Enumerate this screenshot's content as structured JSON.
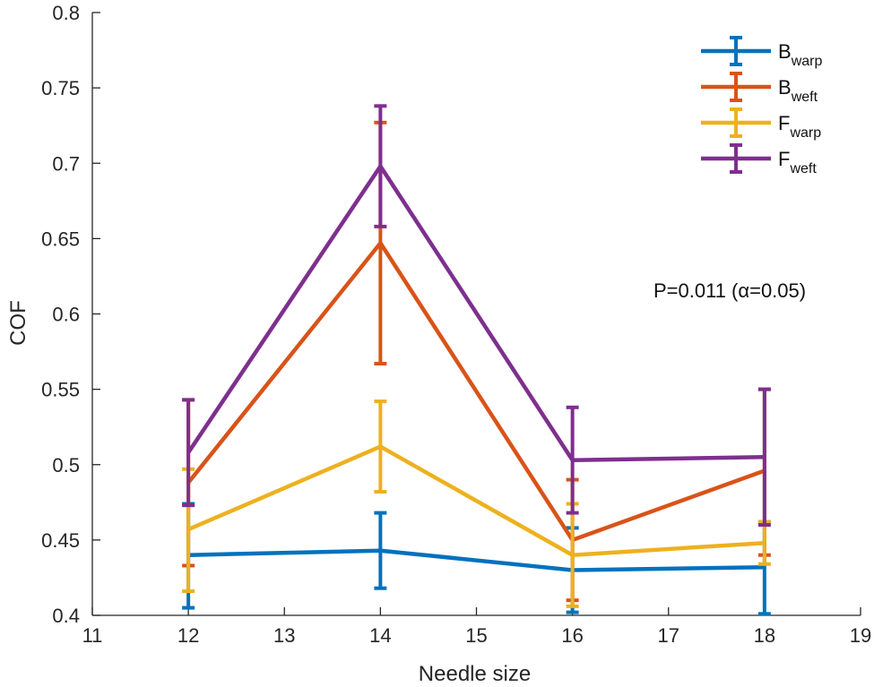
{
  "chart_data": {
    "type": "line",
    "title": "",
    "xlabel": "Needle size",
    "ylabel": "COF",
    "xlim": [
      11,
      19
    ],
    "ylim": [
      0.4,
      0.8
    ],
    "x_ticks": [
      "11",
      "12",
      "13",
      "14",
      "15",
      "16",
      "17",
      "18",
      "19"
    ],
    "y_ticks": [
      "0.4",
      "0.45",
      "0.5",
      "0.55",
      "0.6",
      "0.65",
      "0.7",
      "0.75",
      "0.8"
    ],
    "x": [
      12,
      14,
      16,
      18
    ],
    "grid": false,
    "legend_position": "top-right",
    "series": [
      {
        "name": "B_warp",
        "label_main": "B",
        "label_sub": "warp",
        "color": "#0072BD",
        "values": [
          0.44,
          0.443,
          0.43,
          0.432
        ],
        "err_low": [
          0.405,
          0.418,
          0.402,
          0.401
        ],
        "err_high": [
          0.474,
          0.468,
          0.458,
          0.462
        ]
      },
      {
        "name": "B_weft",
        "label_main": "B",
        "label_sub": "weft",
        "color": "#D95319",
        "values": [
          0.488,
          0.647,
          0.45,
          0.496
        ],
        "err_low": [
          0.433,
          0.567,
          0.41,
          0.44
        ],
        "err_high": [
          0.543,
          0.727,
          0.49,
          0.55
        ]
      },
      {
        "name": "F_warp",
        "label_main": "F",
        "label_sub": "warp",
        "color": "#EDB120",
        "values": [
          0.457,
          0.512,
          0.44,
          0.448
        ],
        "err_low": [
          0.416,
          0.482,
          0.406,
          0.434
        ],
        "err_high": [
          0.497,
          0.542,
          0.474,
          0.462
        ]
      },
      {
        "name": "F_weft",
        "label_main": "F",
        "label_sub": "weft",
        "color": "#7E2F8E",
        "values": [
          0.508,
          0.698,
          0.503,
          0.505
        ],
        "err_low": [
          0.473,
          0.658,
          0.468,
          0.46
        ],
        "err_high": [
          0.543,
          0.738,
          0.538,
          0.55
        ]
      }
    ],
    "annotations": [
      "P=0.011 (α=0.05)"
    ]
  }
}
